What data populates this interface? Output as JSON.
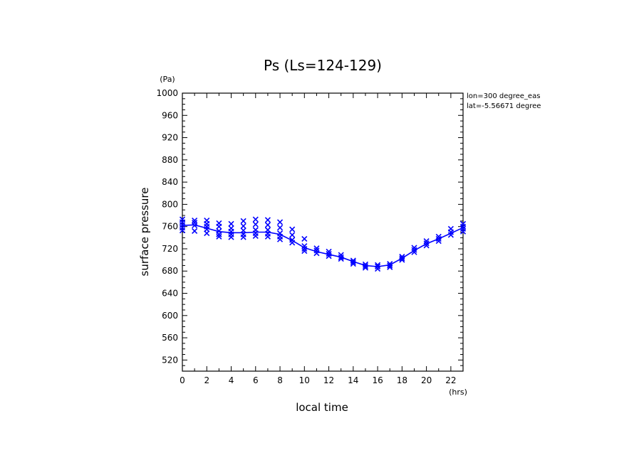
{
  "chart_data": {
    "type": "line",
    "title": "Ps (Ls=124-129)",
    "xlabel": "local time",
    "ylabel": "surface pressure",
    "x_unit": "(hrs)",
    "y_unit": "(Pa)",
    "xlim": [
      0,
      23
    ],
    "ylim": [
      500,
      1000
    ],
    "x_ticks": [
      "0",
      "2",
      "4",
      "6",
      "8",
      "10",
      "12",
      "14",
      "16",
      "18",
      "20",
      "22"
    ],
    "y_ticks": [
      "520",
      "560",
      "600",
      "640",
      "680",
      "720",
      "760",
      "800",
      "840",
      "880",
      "920",
      "960",
      "1000"
    ],
    "annotations": [
      "lon=300 degree_eas",
      "lat=-5.56671 degree"
    ],
    "color": "#0000ff",
    "series": [
      {
        "style": "line",
        "x": [
          0,
          1,
          2,
          3,
          4,
          5,
          6,
          7,
          8,
          9,
          10,
          11,
          12,
          13,
          14,
          15,
          16,
          17,
          18,
          19,
          20,
          21,
          22,
          23
        ],
        "y": [
          762,
          763,
          757,
          751,
          749,
          749,
          750,
          750,
          746,
          735,
          722,
          715,
          710,
          705,
          697,
          690,
          688,
          691,
          703,
          717,
          729,
          738,
          748,
          758
        ]
      },
      {
        "style": "markers",
        "marker": "x",
        "points": [
          [
            0,
            773
          ],
          [
            0,
            768
          ],
          [
            0,
            763
          ],
          [
            0,
            758
          ],
          [
            0,
            753
          ],
          [
            1,
            771
          ],
          [
            1,
            767
          ],
          [
            1,
            762
          ],
          [
            1,
            752
          ],
          [
            2,
            771
          ],
          [
            2,
            765
          ],
          [
            2,
            760
          ],
          [
            2,
            755
          ],
          [
            2,
            748
          ],
          [
            3,
            766
          ],
          [
            3,
            760
          ],
          [
            3,
            752
          ],
          [
            3,
            746
          ],
          [
            3,
            742
          ],
          [
            4,
            765
          ],
          [
            4,
            757
          ],
          [
            4,
            751
          ],
          [
            4,
            746
          ],
          [
            4,
            741
          ],
          [
            5,
            770
          ],
          [
            5,
            761
          ],
          [
            5,
            753
          ],
          [
            5,
            746
          ],
          [
            5,
            741
          ],
          [
            6,
            773
          ],
          [
            6,
            764
          ],
          [
            6,
            754
          ],
          [
            6,
            748
          ],
          [
            6,
            743
          ],
          [
            7,
            772
          ],
          [
            7,
            763
          ],
          [
            7,
            754
          ],
          [
            7,
            747
          ],
          [
            7,
            742
          ],
          [
            8,
            768
          ],
          [
            8,
            758
          ],
          [
            8,
            748
          ],
          [
            8,
            742
          ],
          [
            8,
            737
          ],
          [
            9,
            755
          ],
          [
            9,
            745
          ],
          [
            9,
            736
          ],
          [
            9,
            731
          ],
          [
            10,
            738
          ],
          [
            10,
            725
          ],
          [
            10,
            720
          ],
          [
            10,
            716
          ],
          [
            11,
            721
          ],
          [
            11,
            717
          ],
          [
            11,
            712
          ],
          [
            12,
            715
          ],
          [
            12,
            711
          ],
          [
            12,
            707
          ],
          [
            13,
            709
          ],
          [
            13,
            705
          ],
          [
            13,
            702
          ],
          [
            14,
            699
          ],
          [
            14,
            696
          ],
          [
            14,
            693
          ],
          [
            15,
            692
          ],
          [
            15,
            689
          ],
          [
            15,
            686
          ],
          [
            16,
            691
          ],
          [
            16,
            688
          ],
          [
            16,
            684
          ],
          [
            17,
            693
          ],
          [
            17,
            690
          ],
          [
            17,
            687
          ],
          [
            18,
            706
          ],
          [
            18,
            703
          ],
          [
            18,
            700
          ],
          [
            19,
            722
          ],
          [
            19,
            718
          ],
          [
            19,
            714
          ],
          [
            20,
            734
          ],
          [
            20,
            730
          ],
          [
            20,
            726
          ],
          [
            21,
            742
          ],
          [
            21,
            738
          ],
          [
            21,
            734
          ],
          [
            22,
            756
          ],
          [
            22,
            750
          ],
          [
            22,
            745
          ],
          [
            23,
            765
          ],
          [
            23,
            760
          ],
          [
            23,
            756
          ],
          [
            23,
            751
          ]
        ]
      }
    ]
  }
}
